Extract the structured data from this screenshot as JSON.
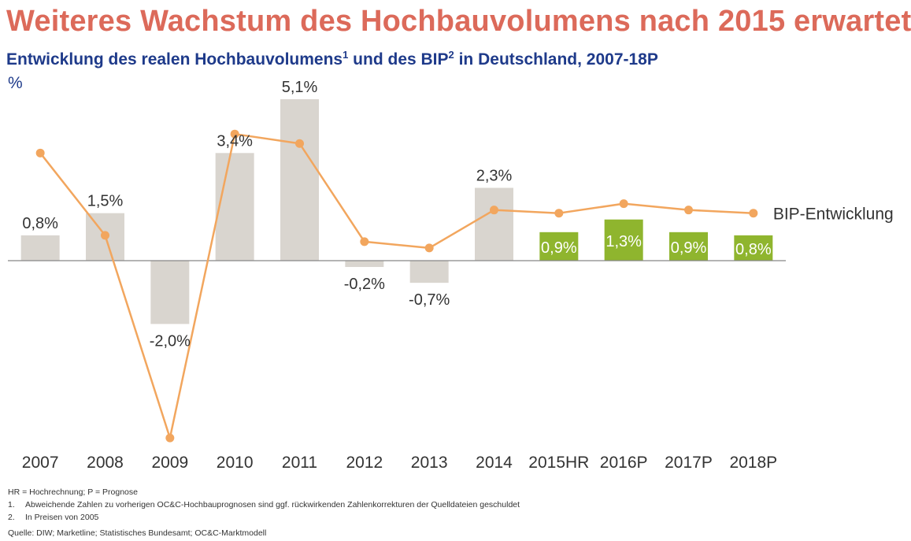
{
  "header": {
    "title": "Weiteres Wachstum des Hochbauvolumens nach 2015 erwartet",
    "subtitle_part1": "Entwicklung des realen Hochbauvolumens",
    "subtitle_sup1": "1",
    "subtitle_part2": " und des BIP",
    "subtitle_sup2": "2",
    "subtitle_part3": " in Deutschland, 2007-18P",
    "unit": "%"
  },
  "chart_data": {
    "type": "bar",
    "categories": [
      "2007",
      "2008",
      "2009",
      "2010",
      "2011",
      "2012",
      "2013",
      "2014",
      "2015HR",
      "2016P",
      "2017P",
      "2018P"
    ],
    "series": [
      {
        "values": [
          0.8,
          1.5,
          -2.0,
          3.4,
          5.1,
          -0.2,
          -0.7,
          2.3,
          0.9,
          1.3,
          0.9,
          0.8
        ],
        "labels": [
          "0,8%",
          "1,5%",
          "-2,0%",
          "3,4%",
          "5,1%",
          "-0,2%",
          "-0,7%",
          "2,3%",
          "0,9%",
          "1,3%",
          "0,9%",
          "0,8%"
        ],
        "colors": [
          "#d9d5cf",
          "#d9d5cf",
          "#d9d5cf",
          "#d9d5cf",
          "#d9d5cf",
          "#d9d5cf",
          "#d9d5cf",
          "#d9d5cf",
          "#8fb52e",
          "#8fb52e",
          "#8fb52e",
          "#8fb52e"
        ],
        "labels_inside": [
          false,
          false,
          false,
          false,
          false,
          false,
          false,
          false,
          true,
          true,
          true,
          true
        ]
      },
      {
        "name": "BIP-Entwicklung",
        "type": "line",
        "values": [
          3.4,
          0.8,
          -5.6,
          4.0,
          3.7,
          0.6,
          0.4,
          1.6,
          1.5,
          1.8,
          1.6,
          1.5
        ],
        "color": "#f2a65e"
      }
    ],
    "ylim": [
      -5.9,
      5.3
    ],
    "grid": false,
    "legend": "right, next to last line point"
  },
  "footnotes": {
    "abbrev": "HR = Hochrechnung; P = Prognose",
    "notes": [
      {
        "num": "1.",
        "text": "Abweichende Zahlen zu vorherigen OC&C-Hochbauprognosen sind ggf. rückwirkenden Zahlenkorrekturen der Quelldateien geschuldet"
      },
      {
        "num": "2.",
        "text": "In Preisen von 2005"
      }
    ],
    "source": "Quelle: DIW; Marketline; Statistisches Bundesamt; OC&C-Marktmodell"
  }
}
